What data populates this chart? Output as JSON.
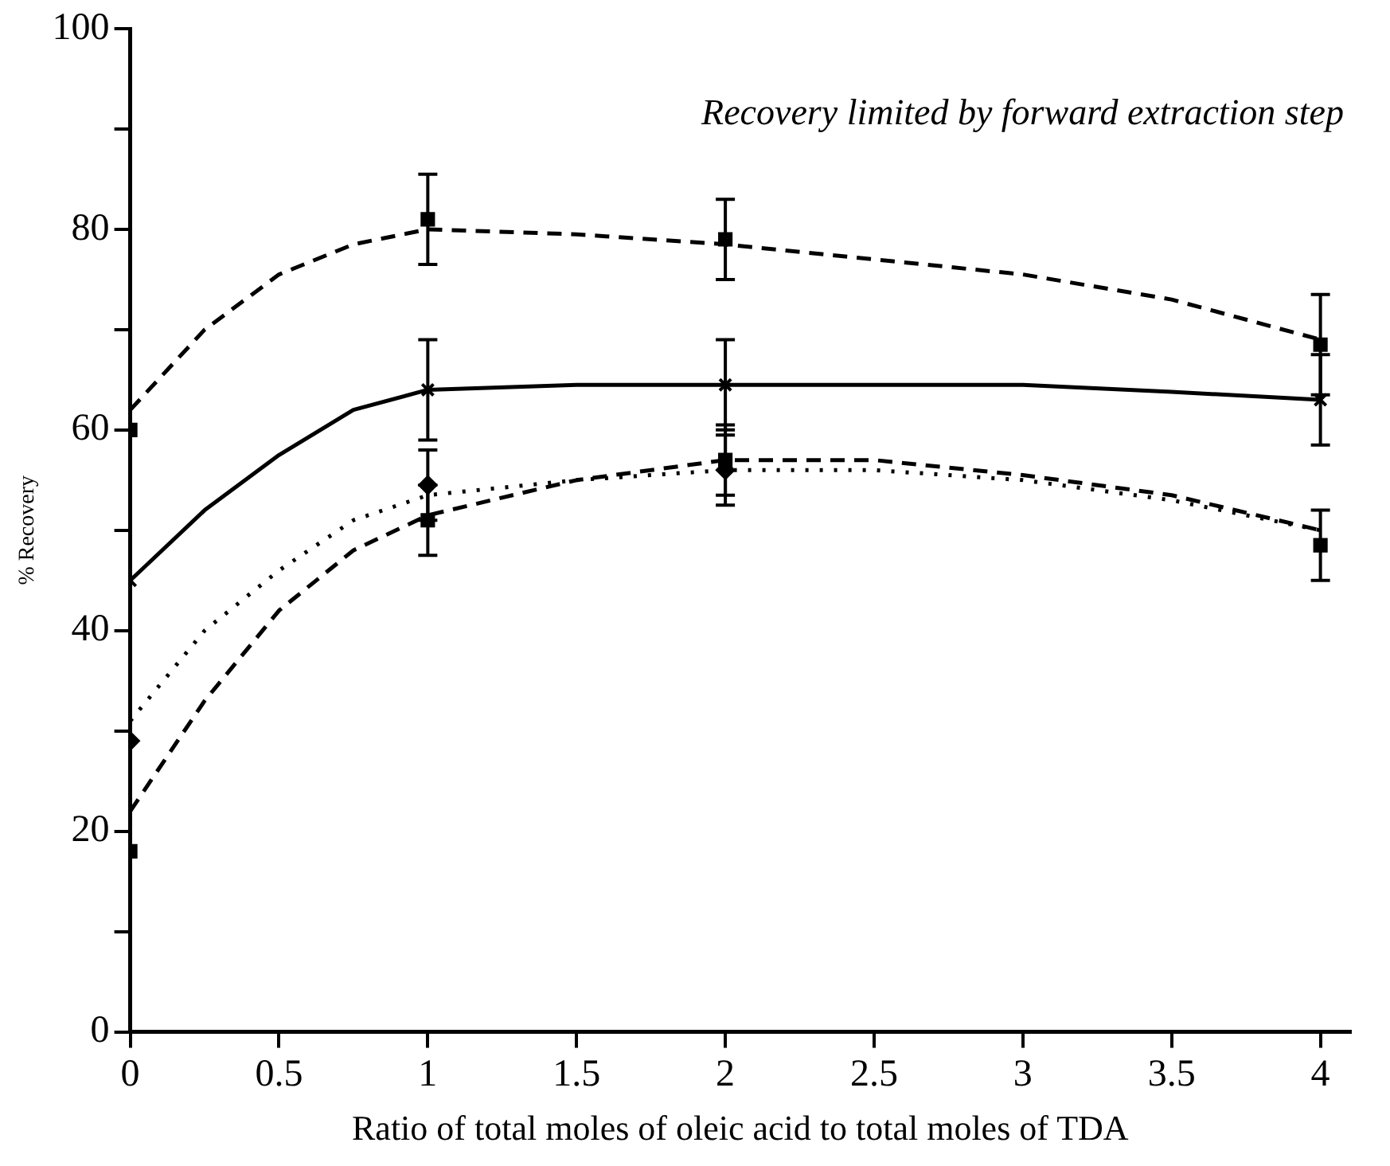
{
  "chart_data": {
    "type": "scatter",
    "xlabel": "Ratio of total moles of oleic acid to total moles of TDA",
    "ylabel": "% Recovery",
    "annotations": [
      "Recovery limited by forward extraction step"
    ],
    "xlim": [
      0,
      4.1
    ],
    "xticks": [
      0,
      0.5,
      1,
      1.5,
      2,
      2.5,
      3,
      3.5,
      4
    ],
    "ylim": [
      0,
      100
    ],
    "yticks": [
      0,
      {
        "value": 10,
        "label": null
      },
      20,
      {
        "value": 30,
        "label": null
      },
      40,
      {
        "value": 50,
        "label": null
      },
      60,
      {
        "value": 70,
        "label": null
      },
      80,
      {
        "value": 90,
        "label": null
      },
      100
    ],
    "grid": false,
    "legend": false,
    "series": [
      {
        "type": "line",
        "color": "#000000",
        "line_style": "dashed",
        "marker": "none",
        "x": [
          0,
          0.25,
          0.5,
          0.75,
          1,
          1.5,
          2,
          2.5,
          3,
          3.5,
          4
        ],
        "values": [
          62,
          70,
          75.5,
          78.5,
          80,
          79.5,
          78.5,
          77,
          75.5,
          73,
          69
        ]
      },
      {
        "type": "line",
        "color": "#000000",
        "line_style": "solid",
        "marker": "none",
        "x": [
          0,
          0.25,
          0.5,
          0.75,
          1,
          1.5,
          2,
          2.5,
          3,
          3.5,
          4
        ],
        "values": [
          45,
          52,
          57.5,
          62,
          64,
          64.5,
          64.5,
          64.5,
          64.5,
          63.8,
          63
        ]
      },
      {
        "type": "line",
        "color": "#000000",
        "line_style": "dotted",
        "marker": "none",
        "x": [
          0,
          0.25,
          0.5,
          0.75,
          1,
          1.5,
          2,
          2.5,
          3,
          3.5,
          4
        ],
        "values": [
          31,
          40,
          46,
          51,
          53.5,
          55,
          56,
          56,
          55,
          53,
          50
        ]
      },
      {
        "type": "line",
        "color": "#000000",
        "line_style": "dashed",
        "marker": "none",
        "x": [
          0,
          0.25,
          0.5,
          0.75,
          1,
          1.5,
          2,
          2.5,
          3,
          3.5,
          4
        ],
        "values": [
          22,
          33,
          42,
          48,
          51.5,
          55,
          57,
          57,
          55.5,
          53.5,
          50
        ]
      },
      {
        "type": "scatter",
        "color": "#000000",
        "marker": "square",
        "x": [
          0,
          1,
          2,
          4
        ],
        "values": [
          60,
          81,
          79,
          68.5
        ],
        "errors": [
          null,
          4.5,
          4,
          5
        ]
      },
      {
        "type": "scatter",
        "color": "#000000",
        "marker": "cross",
        "x": [
          0,
          1,
          2,
          4
        ],
        "values": [
          45,
          64,
          64.5,
          63
        ],
        "errors": [
          null,
          5,
          4.5,
          4.5
        ]
      },
      {
        "type": "scatter",
        "color": "#000000",
        "marker": "diamond",
        "x": [
          0,
          1,
          2
        ],
        "values": [
          29,
          54.5,
          56
        ],
        "errors": [
          null,
          3.5,
          3.5
        ]
      },
      {
        "type": "scatter",
        "color": "#000000",
        "marker": "square",
        "x": [
          0,
          1,
          2,
          4
        ],
        "values": [
          18,
          51,
          57,
          48.5
        ],
        "errors": [
          null,
          3.5,
          3.5,
          3.5
        ]
      }
    ]
  }
}
